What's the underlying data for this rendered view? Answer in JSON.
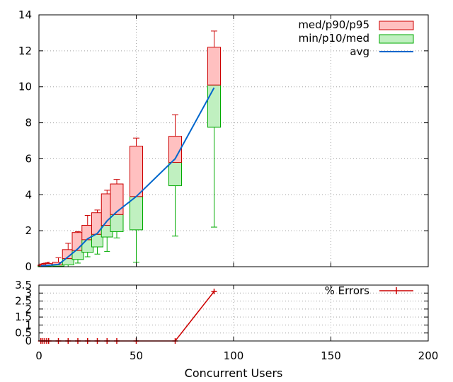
{
  "chart_data": [
    {
      "type": "box",
      "xlabel": "Concurrent Users",
      "xlim": [
        0,
        200
      ],
      "xticks": [
        "0",
        "50",
        "100",
        "150",
        "200"
      ],
      "ylim": [
        0,
        14
      ],
      "yticks": [
        "0",
        "2",
        "4",
        "6",
        "8",
        "10",
        "12",
        "14"
      ],
      "grid": true,
      "legend_position": "top-right",
      "legend": {
        "upper_box": "med/p90/p95",
        "lower_box": "min/p10/med",
        "avg_line": "avg"
      },
      "colors": {
        "upper_fill": "#ffc0c0",
        "upper_stroke": "#cc0000",
        "lower_fill": "#c0f0c0",
        "lower_stroke": "#00aa00",
        "avg_line": "#0066cc"
      },
      "boxes": [
        {
          "x": 1,
          "min": 0.0,
          "p10": 0.0,
          "med": 0.05,
          "p90": 0.1,
          "p95": 0.15
        },
        {
          "x": 2,
          "min": 0.0,
          "p10": 0.0,
          "med": 0.05,
          "p90": 0.12,
          "p95": 0.18
        },
        {
          "x": 3,
          "min": 0.0,
          "p10": 0.02,
          "med": 0.06,
          "p90": 0.15,
          "p95": 0.2
        },
        {
          "x": 4,
          "min": 0.0,
          "p10": 0.02,
          "med": 0.07,
          "p90": 0.15,
          "p95": 0.22
        },
        {
          "x": 5,
          "min": 0.0,
          "p10": 0.02,
          "med": 0.08,
          "p90": 0.18,
          "p95": 0.25
        },
        {
          "x": 10,
          "min": 0.0,
          "p10": 0.03,
          "med": 0.1,
          "p90": 0.25,
          "p95": 0.5
        },
        {
          "x": 15,
          "min": 0.0,
          "p10": 0.1,
          "med": 0.45,
          "p90": 0.95,
          "p95": 1.3
        },
        {
          "x": 20,
          "min": 0.2,
          "p10": 0.4,
          "med": 0.9,
          "p90": 1.9,
          "p95": 1.95
        },
        {
          "x": 25,
          "min": 0.55,
          "p10": 0.8,
          "med": 1.5,
          "p90": 2.3,
          "p95": 2.85
        },
        {
          "x": 30,
          "min": 0.7,
          "p10": 1.1,
          "med": 1.8,
          "p90": 3.0,
          "p95": 3.15
        },
        {
          "x": 35,
          "min": 0.85,
          "p10": 1.65,
          "med": 2.3,
          "p90": 4.05,
          "p95": 4.25
        },
        {
          "x": 40,
          "min": 1.6,
          "p10": 1.95,
          "med": 2.9,
          "p90": 4.6,
          "p95": 4.85
        },
        {
          "x": 50,
          "min": 0.25,
          "p10": 2.05,
          "med": 3.9,
          "p90": 6.7,
          "p95": 7.15
        },
        {
          "x": 70,
          "min": 1.7,
          "p10": 4.5,
          "med": 5.8,
          "p90": 7.25,
          "p95": 8.45
        },
        {
          "x": 90,
          "min": 2.2,
          "p10": 7.75,
          "med": 10.1,
          "p90": 12.2,
          "p95": 13.1
        }
      ],
      "avg": {
        "x": [
          1,
          2,
          3,
          4,
          5,
          10,
          15,
          20,
          25,
          30,
          35,
          40,
          50,
          70,
          90
        ],
        "y": [
          0.05,
          0.05,
          0.06,
          0.07,
          0.08,
          0.12,
          0.55,
          1.0,
          1.55,
          1.85,
          2.55,
          3.05,
          3.9,
          6.0,
          9.95
        ]
      }
    },
    {
      "type": "line",
      "xlabel": "Concurrent Users",
      "xlim": [
        0,
        200
      ],
      "xticks": [
        "0",
        "50",
        "100",
        "150",
        "200"
      ],
      "ylim": [
        0,
        3.5
      ],
      "yticks": [
        "0",
        "0.5",
        "1",
        "1.5",
        "2",
        "2.5",
        "3",
        "3.5"
      ],
      "grid": true,
      "legend_position": "top-right",
      "series": [
        {
          "name": "% Errors",
          "color": "#cc0000",
          "x": [
            1,
            2,
            3,
            4,
            5,
            10,
            15,
            20,
            25,
            30,
            35,
            40,
            50,
            70,
            90
          ],
          "y": [
            0,
            0,
            0,
            0,
            0,
            0,
            0,
            0,
            0,
            0,
            0,
            0,
            0,
            0,
            3.1
          ]
        }
      ]
    }
  ]
}
